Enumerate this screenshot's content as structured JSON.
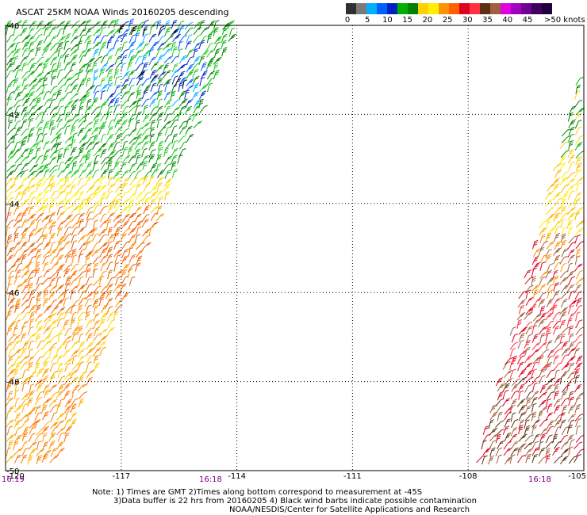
{
  "title": "ASCAT 25KM NOAA Winds 20160205 descending",
  "colorbar": {
    "colors": [
      "#303030",
      "#7a7a7a",
      "#00b0ff",
      "#0060ff",
      "#0020c0",
      "#00b000",
      "#008000",
      "#ffd000",
      "#ffee00",
      "#ff9000",
      "#ff6000",
      "#e00020",
      "#ff3040",
      "#5c3010",
      "#a06040",
      "#e000e0",
      "#a000c0",
      "#700090",
      "#400060",
      "#200040"
    ],
    "labels": [
      "0",
      "5",
      "10",
      "15",
      "20",
      "25",
      "30",
      "35",
      "40",
      "45",
      ">50 knots"
    ]
  },
  "map": {
    "lon_ticks": [
      -120,
      -117,
      -114,
      -111,
      -108,
      -105
    ],
    "lon_labels": [
      "-120",
      "-117",
      "-114",
      "-111",
      "-108",
      "-105"
    ],
    "lat_ticks": [
      -40,
      -42,
      -44,
      -46,
      -48,
      -50
    ],
    "lat_labels": [
      "-40",
      "-42",
      "-44",
      "-46",
      "-48",
      "-50"
    ],
    "lon_range": [
      -120,
      -105
    ],
    "lat_range": [
      -50,
      -40
    ]
  },
  "time_labels": [
    {
      "text": "16:19",
      "color": "#800080"
    },
    {
      "text": "16:18",
      "color": "#800080"
    },
    {
      "text": "16:18",
      "color": "#800080"
    }
  ],
  "notes": {
    "line1": "Note: 1) Times are GMT 2)Times along bottom correspond to measurement at -45S",
    "line2": "3)Data buffer is 22 hrs from 20160205 4) Black wind barbs indicate possible contamination",
    "line3": "NOAA/NESDIS/Center for Satellite Applications and Research"
  }
}
